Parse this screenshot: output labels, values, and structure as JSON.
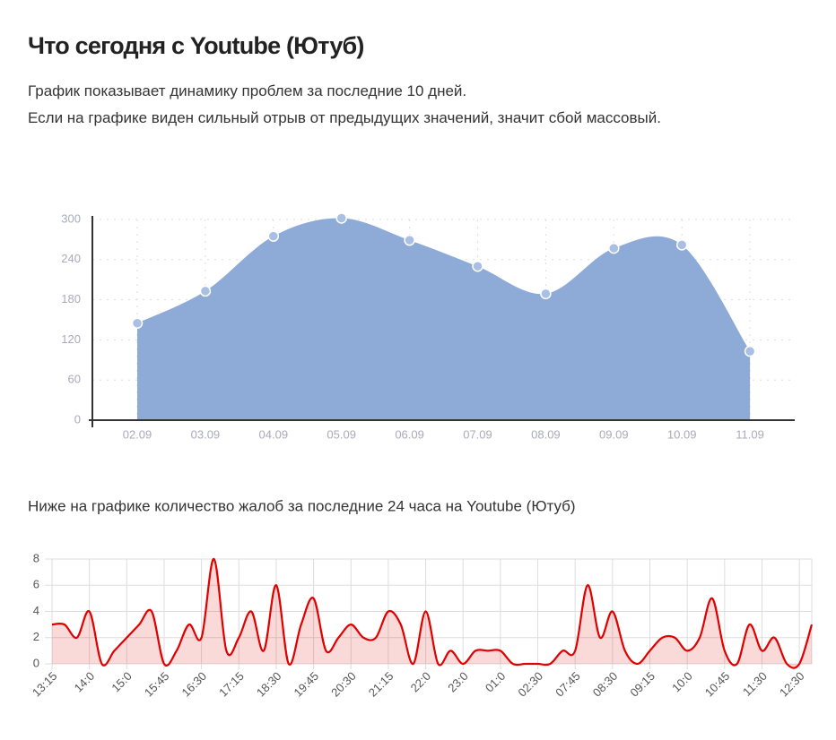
{
  "header": {
    "title": "Что сегодня с Youtube (Ютуб)",
    "lines": [
      "График показывает динамику проблем за последние 10 дней.",
      "Если на графике виден сильный отрыв от предыдущих значений, значит сбой массовый."
    ]
  },
  "chart_data": [
    {
      "type": "area",
      "categories": [
        "02.09",
        "03.09",
        "04.09",
        "05.09",
        "06.09",
        "07.09",
        "08.09",
        "09.09",
        "10.09",
        "11.09"
      ],
      "values": [
        145,
        193,
        275,
        302,
        269,
        230,
        189,
        257,
        262,
        103
      ],
      "color": "#8eabd8",
      "ylim": [
        0,
        300
      ],
      "yticks": [
        0,
        60,
        120,
        180,
        240,
        300
      ],
      "grid": true
    },
    {
      "type": "line",
      "title": "Ниже на графике количество жалоб за последние 24 часа на Youtube (Ютуб)",
      "categories": [
        "13:15",
        null,
        null,
        "14:0",
        null,
        null,
        "15:0",
        null,
        null,
        "15:45",
        null,
        null,
        "16:30",
        null,
        null,
        "17:15",
        null,
        null,
        "18:30",
        null,
        null,
        "19:45",
        null,
        null,
        "20:30",
        null,
        null,
        "21:15",
        null,
        null,
        "22:0",
        null,
        null,
        "23:0",
        null,
        null,
        "01:0",
        null,
        null,
        "02:30",
        null,
        null,
        "07:45",
        null,
        null,
        "08:30",
        null,
        null,
        "09:15",
        null,
        null,
        "10:0",
        null,
        null,
        "10:45",
        null,
        null,
        "11:30",
        null,
        null,
        "12:30",
        null
      ],
      "values": [
        3,
        3,
        2,
        4,
        0,
        1,
        2,
        3,
        4,
        0,
        1,
        3,
        2,
        8,
        1,
        2,
        4,
        1,
        6,
        0,
        3,
        5,
        1,
        2,
        3,
        2,
        2,
        4,
        3,
        0,
        4,
        0,
        1,
        0,
        1,
        1,
        1,
        0,
        0,
        0,
        0,
        1,
        1,
        6,
        2,
        4,
        1,
        0,
        1,
        2,
        2,
        1,
        2,
        5,
        1,
        0,
        3,
        1,
        2,
        0,
        0,
        3
      ],
      "color": "#e00000",
      "ylim": [
        0,
        8
      ],
      "yticks": [
        0,
        2,
        4,
        6,
        8
      ],
      "grid": true
    }
  ]
}
